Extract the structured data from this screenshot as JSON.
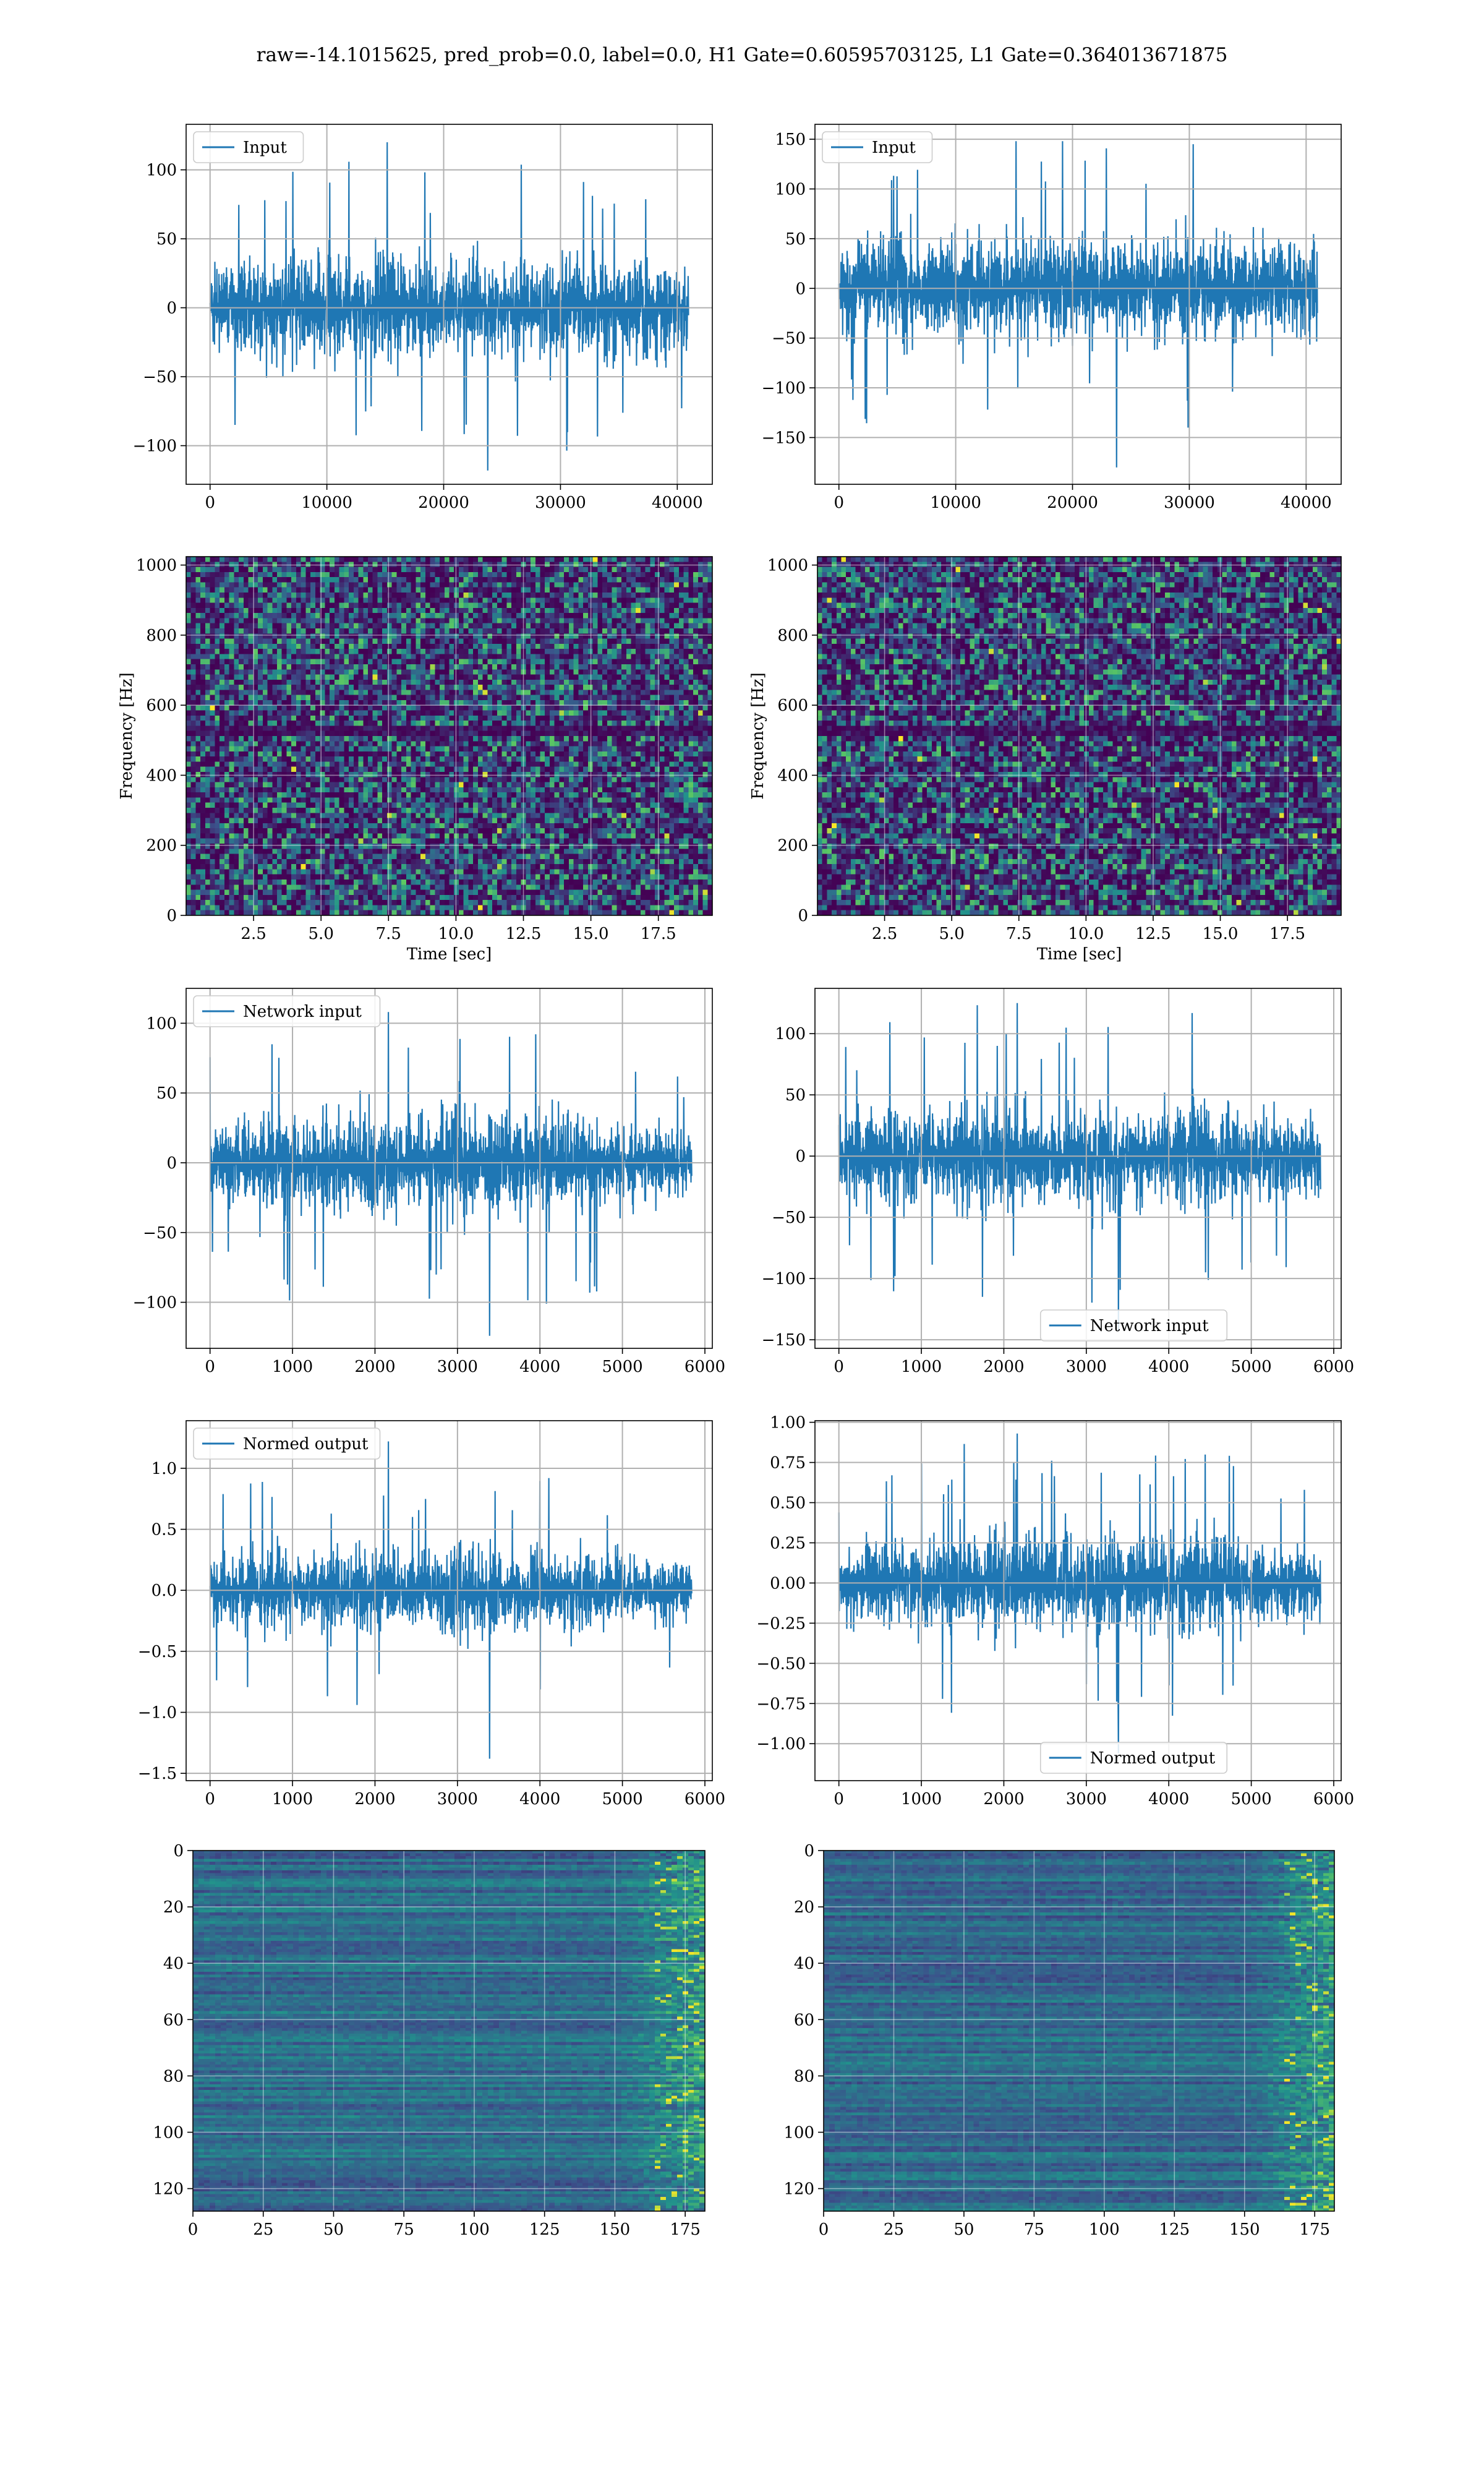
{
  "figure": {
    "suptitle": "raw=-14.1015625, pred_prob=0.0, label=0.0, H1 Gate=0.60595703125, L1 Gate=0.364013671875",
    "colors": {
      "line": "#1f77b4",
      "grid": "#b0b0b0",
      "background": "#ffffff",
      "spines": "#000000",
      "viridis": [
        "#440154",
        "#3b528b",
        "#21918c",
        "#5ec962",
        "#fde725"
      ]
    }
  },
  "chart_data": [
    {
      "id": "row1-left",
      "type": "line",
      "legend": "Input",
      "legend_loc": "upper left",
      "xlim": [
        -2050,
        43000
      ],
      "ylim": [
        -128,
        133
      ],
      "xticks": [
        0,
        10000,
        20000,
        30000,
        40000
      ],
      "xticklabels": [
        "0",
        "10000",
        "20000",
        "30000",
        "40000"
      ],
      "yticks": [
        -100,
        -50,
        0,
        50,
        100
      ],
      "yticklabels": [
        "−100",
        "−50",
        "0",
        "50",
        "100"
      ],
      "xlabel": "",
      "ylabel": "",
      "grid": true,
      "signal": {
        "x_start": 0,
        "x_end": 40960,
        "envelope": [
          40,
          55,
          50,
          58,
          55,
          60,
          52,
          58,
          55,
          50,
          58,
          55,
          60,
          52,
          55,
          58,
          50,
          55,
          52,
          48
        ],
        "peak_max": 120,
        "peak_min": -118
      }
    },
    {
      "id": "row1-right",
      "type": "line",
      "legend": "Input",
      "legend_loc": "upper left",
      "xlim": [
        -2050,
        43000
      ],
      "ylim": [
        -197,
        165
      ],
      "xticks": [
        0,
        10000,
        20000,
        30000,
        40000
      ],
      "xticklabels": [
        "0",
        "10000",
        "20000",
        "30000",
        "40000"
      ],
      "yticks": [
        -150,
        -100,
        -50,
        0,
        50,
        100,
        150
      ],
      "yticklabels": [
        "−150",
        "−100",
        "−50",
        "0",
        "50",
        "100",
        "150"
      ],
      "xlabel": "",
      "ylabel": "",
      "grid": true,
      "signal": {
        "x_start": 0,
        "x_end": 40960,
        "envelope": [
          60,
          75,
          70,
          80,
          75,
          82,
          78,
          75,
          80,
          78,
          72,
          80,
          75,
          82,
          78,
          75,
          70,
          78,
          72,
          65
        ],
        "peak_max": 148,
        "peak_min": -180
      }
    },
    {
      "id": "row2-left",
      "type": "heatmap",
      "colormap": "viridis",
      "pattern": "spectrogram",
      "xlim": [
        0,
        19.5
      ],
      "ylim": [
        0,
        1024
      ],
      "xticks": [
        2.5,
        5.0,
        7.5,
        10.0,
        12.5,
        15.0,
        17.5
      ],
      "xticklabels": [
        "2.5",
        "5.0",
        "7.5",
        "10.0",
        "12.5",
        "15.0",
        "17.5"
      ],
      "yticks": [
        0,
        200,
        400,
        600,
        800,
        1000
      ],
      "yticklabels": [
        "0",
        "200",
        "400",
        "600",
        "800",
        "1000"
      ],
      "xlabel": "Time [sec]",
      "ylabel": "Frequency [Hz]",
      "grid": true,
      "seed": 7
    },
    {
      "id": "row2-right",
      "type": "heatmap",
      "colormap": "viridis",
      "pattern": "spectrogram",
      "xlim": [
        0,
        19.5
      ],
      "ylim": [
        0,
        1024
      ],
      "xticks": [
        2.5,
        5.0,
        7.5,
        10.0,
        12.5,
        15.0,
        17.5
      ],
      "xticklabels": [
        "2.5",
        "5.0",
        "7.5",
        "10.0",
        "12.5",
        "15.0",
        "17.5"
      ],
      "yticks": [
        0,
        200,
        400,
        600,
        800,
        1000
      ],
      "yticklabels": [
        "0",
        "200",
        "400",
        "600",
        "800",
        "1000"
      ],
      "xlabel": "Time [sec]",
      "ylabel": "Frequency [Hz]",
      "grid": true,
      "seed": 19
    },
    {
      "id": "row3-left",
      "type": "line",
      "legend": "Network input",
      "legend_loc": "upper left",
      "xlim": [
        -290,
        6090
      ],
      "ylim": [
        -133,
        125
      ],
      "xticks": [
        0,
        1000,
        2000,
        3000,
        4000,
        5000,
        6000
      ],
      "xticklabels": [
        "0",
        "1000",
        "2000",
        "3000",
        "4000",
        "5000",
        "6000"
      ],
      "yticks": [
        -100,
        -50,
        0,
        50,
        100
      ],
      "yticklabels": [
        "−100",
        "−50",
        "0",
        "50",
        "100"
      ],
      "xlabel": "",
      "ylabel": "",
      "grid": true,
      "signal": {
        "x_start": 0,
        "x_end": 5840,
        "envelope": [
          40,
          50,
          60,
          55,
          45,
          55,
          60,
          50,
          45,
          55,
          70,
          60,
          50,
          55,
          60,
          50,
          45,
          40,
          38,
          35
        ],
        "peak_max": 108,
        "peak_min": -124
      }
    },
    {
      "id": "row3-right",
      "type": "line",
      "legend": "Network input",
      "legend_loc": "lower center",
      "xlim": [
        -290,
        6090
      ],
      "ylim": [
        -157,
        137
      ],
      "xticks": [
        0,
        1000,
        2000,
        3000,
        4000,
        5000,
        6000
      ],
      "xticklabels": [
        "0",
        "1000",
        "2000",
        "3000",
        "4000",
        "5000",
        "6000"
      ],
      "yticks": [
        -150,
        -100,
        -50,
        0,
        50,
        100
      ],
      "yticklabels": [
        "−150",
        "−100",
        "−50",
        "0",
        "50",
        "100"
      ],
      "xlabel": "",
      "ylabel": "",
      "grid": true,
      "signal": {
        "x_start": 0,
        "x_end": 5840,
        "envelope": [
          45,
          55,
          65,
          60,
          55,
          65,
          70,
          60,
          55,
          60,
          65,
          60,
          55,
          60,
          70,
          65,
          55,
          50,
          50,
          45
        ],
        "peak_max": 125,
        "peak_min": -143
      }
    },
    {
      "id": "row4-left",
      "type": "line",
      "legend": "Normed output",
      "legend_loc": "upper left",
      "xlim": [
        -290,
        6090
      ],
      "ylim": [
        -1.56,
        1.39
      ],
      "xticks": [
        0,
        1000,
        2000,
        3000,
        4000,
        5000,
        6000
      ],
      "xticklabels": [
        "0",
        "1000",
        "2000",
        "3000",
        "4000",
        "5000",
        "6000"
      ],
      "yticks": [
        -1.5,
        -1.0,
        -0.5,
        0.0,
        0.5,
        1.0
      ],
      "yticklabels": [
        "−1.5",
        "−1.0",
        "−0.5",
        "0.0",
        "0.5",
        "1.0"
      ],
      "xlabel": "",
      "ylabel": "",
      "grid": true,
      "signal": {
        "x_start": 0,
        "x_end": 5840,
        "envelope": [
          0.38,
          0.45,
          0.55,
          0.5,
          0.42,
          0.5,
          0.55,
          0.45,
          0.42,
          0.5,
          0.62,
          0.55,
          0.45,
          0.5,
          0.55,
          0.45,
          0.42,
          0.38,
          0.35,
          0.32
        ],
        "peak_max": 1.22,
        "peak_min": -1.38
      }
    },
    {
      "id": "row4-right",
      "type": "line",
      "legend": "Normed output",
      "legend_loc": "lower center",
      "xlim": [
        -290,
        6090
      ],
      "ylim": [
        -1.23,
        1.01
      ],
      "xticks": [
        0,
        1000,
        2000,
        3000,
        4000,
        5000,
        6000
      ],
      "xticklabels": [
        "0",
        "1000",
        "2000",
        "3000",
        "4000",
        "5000",
        "6000"
      ],
      "yticks": [
        -1.0,
        -0.75,
        -0.5,
        -0.25,
        0.0,
        0.25,
        0.5,
        0.75,
        1.0
      ],
      "yticklabels": [
        "−1.00",
        "−0.75",
        "−0.50",
        "−0.25",
        "0.00",
        "0.25",
        "0.50",
        "0.75",
        "1.00"
      ],
      "xlabel": "",
      "ylabel": "",
      "grid": true,
      "signal": {
        "x_start": 0,
        "x_end": 5840,
        "envelope": [
          0.32,
          0.4,
          0.48,
          0.45,
          0.4,
          0.48,
          0.52,
          0.45,
          0.4,
          0.45,
          0.48,
          0.45,
          0.4,
          0.45,
          0.52,
          0.48,
          0.4,
          0.36,
          0.36,
          0.33
        ],
        "peak_max": 0.93,
        "peak_min": -1.06
      }
    },
    {
      "id": "row5-left",
      "type": "heatmap",
      "colormap": "viridis",
      "pattern": "features",
      "xlim": [
        0,
        182
      ],
      "ylim": [
        128,
        0
      ],
      "xticks": [
        0,
        25,
        50,
        75,
        100,
        125,
        150,
        175
      ],
      "xticklabels": [
        "0",
        "25",
        "50",
        "75",
        "100",
        "125",
        "150",
        "175"
      ],
      "yticks": [
        0,
        20,
        40,
        60,
        80,
        100,
        120
      ],
      "yticklabels": [
        "0",
        "20",
        "40",
        "60",
        "80",
        "100",
        "120"
      ],
      "xlabel": "",
      "ylabel": "",
      "grid": true,
      "seed": 31
    },
    {
      "id": "row5-right",
      "type": "heatmap",
      "colormap": "viridis",
      "pattern": "features",
      "xlim": [
        0,
        182
      ],
      "ylim": [
        128,
        0
      ],
      "xticks": [
        0,
        25,
        50,
        75,
        100,
        125,
        150,
        175
      ],
      "xticklabels": [
        "0",
        "25",
        "50",
        "75",
        "100",
        "125",
        "150",
        "175"
      ],
      "yticks": [
        0,
        20,
        40,
        60,
        80,
        100,
        120
      ],
      "yticklabels": [
        "0",
        "20",
        "40",
        "60",
        "80",
        "100",
        "120"
      ],
      "xlabel": "",
      "ylabel": "",
      "grid": true,
      "seed": 53
    }
  ]
}
